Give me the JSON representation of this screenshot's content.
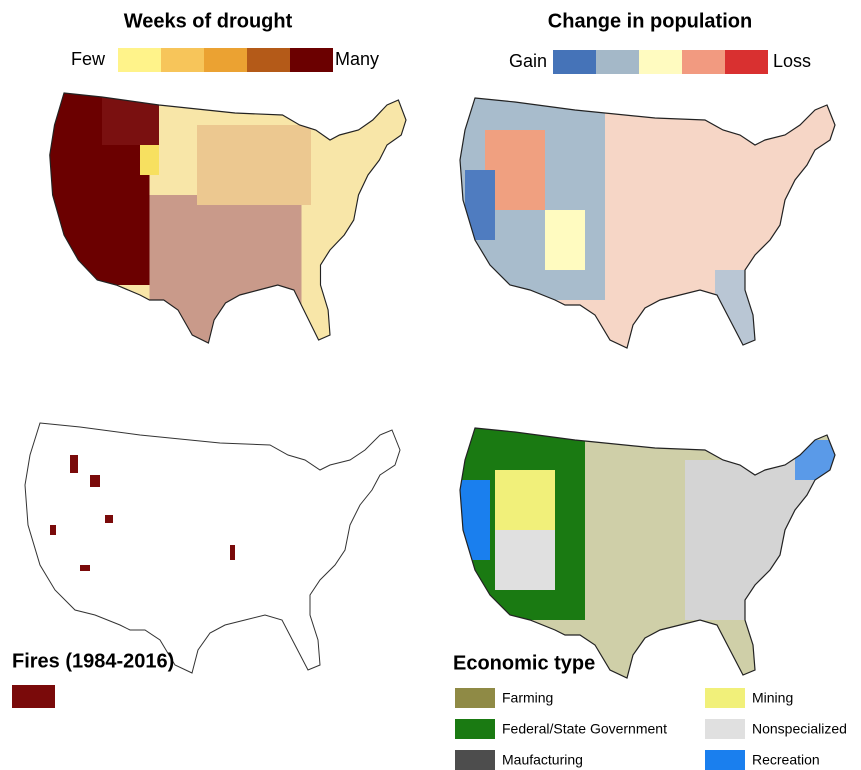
{
  "drought": {
    "title": "Weeks of drought",
    "legend": {
      "low": "Few",
      "high": "Many",
      "colors": [
        "#fff38a",
        "#f7c55a",
        "#eba232",
        "#b45a18",
        "#6b0000"
      ]
    }
  },
  "population": {
    "title": "Change in population",
    "legend": {
      "low": "Gain",
      "high": "Loss",
      "colors": [
        "#4573b8",
        "#a4b8c8",
        "#fffbc0",
        "#f29a80",
        "#d93030"
      ]
    }
  },
  "fires": {
    "title": "Fires (1984-2016)",
    "color": "#7a0a0a"
  },
  "economic": {
    "title": "Economic type",
    "items": [
      {
        "label": "Farming",
        "color": "#8f8a45"
      },
      {
        "label": "Federal/State Government",
        "color": "#1a7a12"
      },
      {
        "label": "Maufacturing",
        "color": "#4d4d4d"
      },
      {
        "label": "Mining",
        "color": "#f1f07a"
      },
      {
        "label": "Nonspecialized",
        "color": "#e0e0e0"
      },
      {
        "label": "Recreation",
        "color": "#1a7fee"
      }
    ]
  }
}
